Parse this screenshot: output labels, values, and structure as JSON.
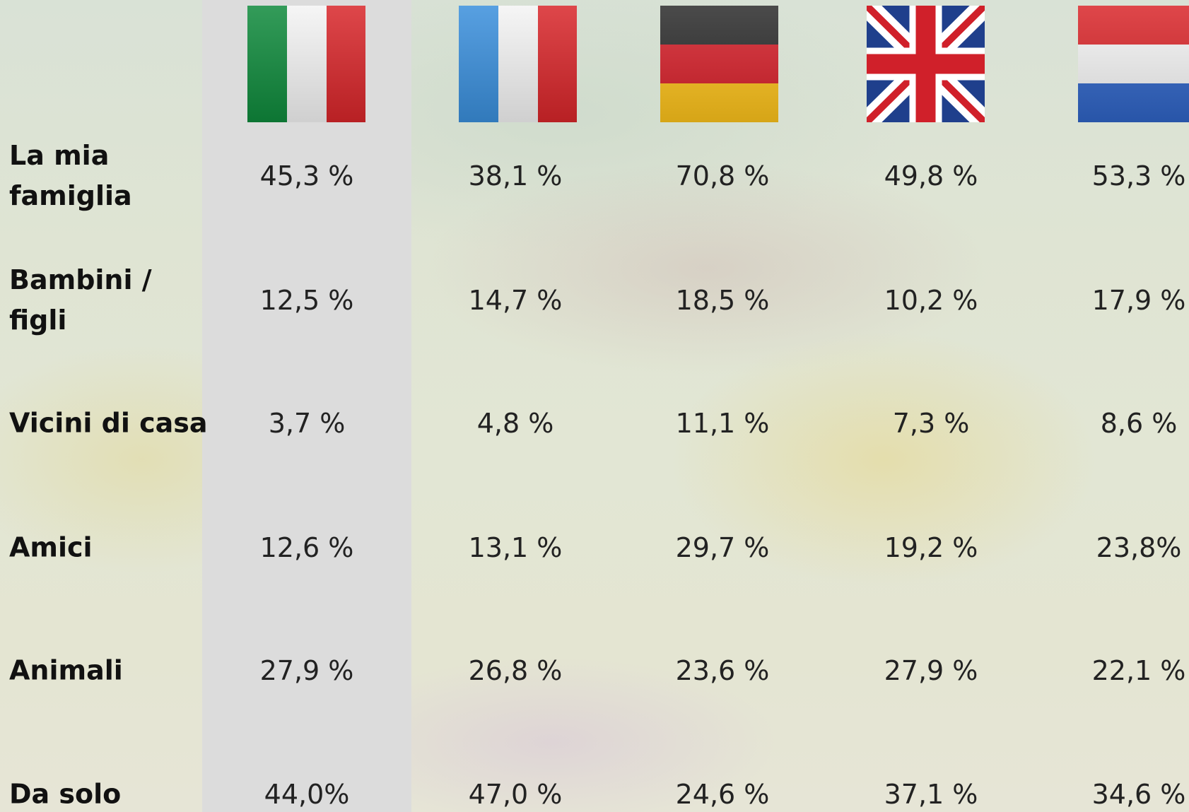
{
  "table": {
    "rows": [
      {
        "label": [
          "La mia",
          "famiglia"
        ],
        "values": [
          "45,3 %",
          "38,1 %",
          "70,8 %",
          "49,8 %",
          "53,3 %"
        ]
      },
      {
        "label": [
          "Bambini /",
          "figli"
        ],
        "values": [
          "12,5 %",
          "14,7 %",
          "18,5 %",
          "10,2 %",
          "17,9 %"
        ]
      },
      {
        "label": [
          "Vicini di casa"
        ],
        "values": [
          "3,7 %",
          "4,8 %",
          "11,1 %",
          "7,3 %",
          "8,6 %"
        ]
      },
      {
        "label": [
          "Amici"
        ],
        "values": [
          "12,6 %",
          "13,1 %",
          "29,7 %",
          "19,2 %",
          "23,8%"
        ]
      },
      {
        "label": [
          "Animali"
        ],
        "values": [
          "27,9 %",
          "26,8 %",
          "23,6 %",
          "27,9 %",
          "22,1 %"
        ]
      },
      {
        "label": [
          "Da solo"
        ],
        "values": [
          "44,0%",
          "47,0 %",
          "24,6 %",
          "37,1 %",
          "34,6 %"
        ]
      }
    ]
  }
}
